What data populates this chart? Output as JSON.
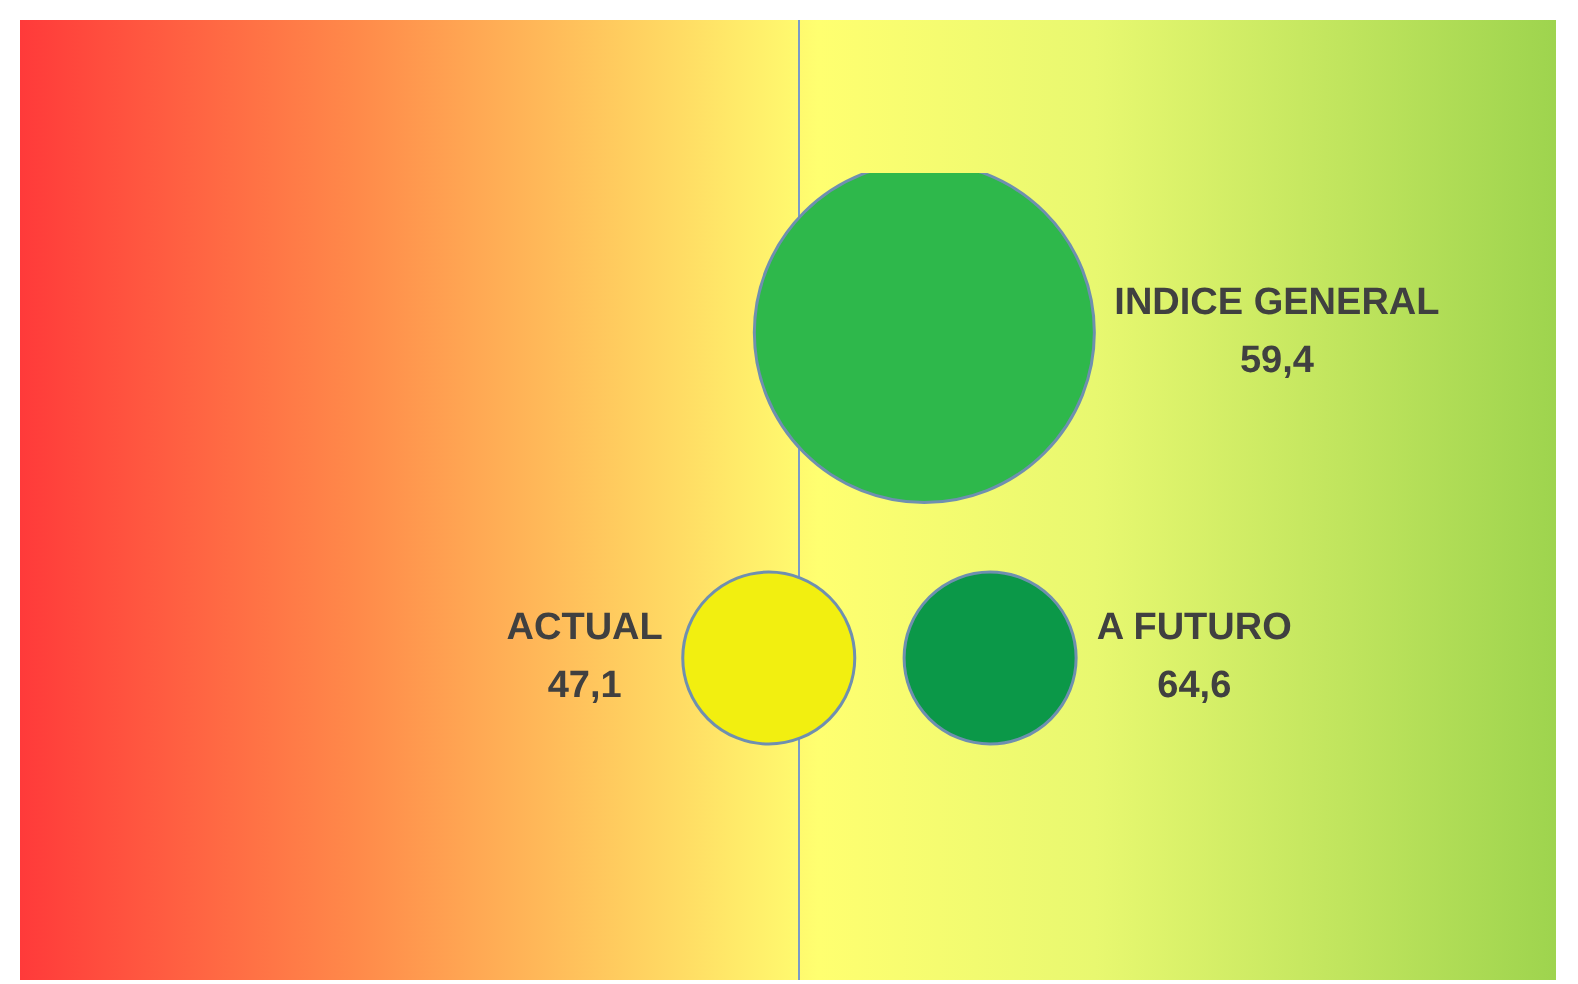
{
  "chart_data": {
    "type": "other",
    "categories": [
      "INDICE GENERAL",
      "ACTUAL",
      "A FUTURO"
    ],
    "values": [
      59.4,
      47.1,
      64.6
    ],
    "value_labels": [
      "59,4",
      "47,1",
      "64,6"
    ],
    "colors": [
      "#2eb84b",
      "#f2ef10",
      "#0b9848"
    ]
  }
}
